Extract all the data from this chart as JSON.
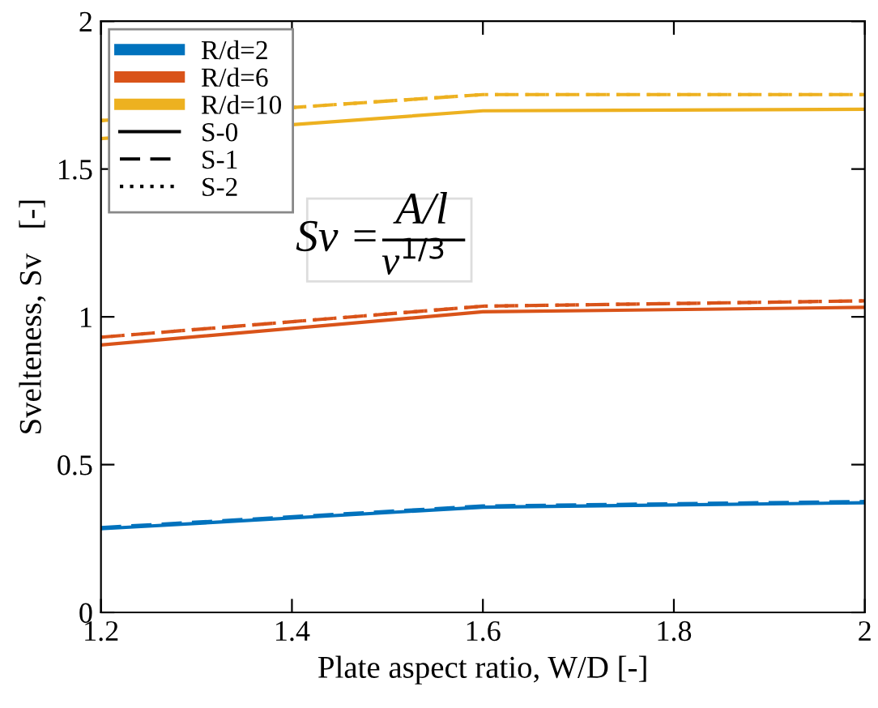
{
  "chart_data": {
    "type": "line",
    "xlabel": "Plate aspect ratio, W/D [-]",
    "ylabel": "Svelteness, Sv   [-]",
    "x": [
      1.2,
      1.6,
      2.0
    ],
    "series": [
      {
        "name": "R/d=2",
        "color": "#0072bd",
        "line_style": "solid",
        "values": [
          0.283,
          0.356,
          0.371
        ]
      },
      {
        "color": "#0072bd",
        "line_style": "dashed",
        "values": [
          0.287,
          0.36,
          0.375
        ]
      },
      {
        "name": "R/d=6",
        "color": "#d95319",
        "line_style": "solid",
        "values": [
          0.905,
          1.017,
          1.032
        ]
      },
      {
        "color": "#d95319",
        "line_style": "dashed",
        "values": [
          0.931,
          1.036,
          1.054
        ]
      },
      {
        "color": "#d95319",
        "line_style": "dotted",
        "values": [
          0.931,
          1.036,
          1.054
        ]
      },
      {
        "name": "R/d=10",
        "color": "#edb120",
        "line_style": "solid",
        "values": [
          1.603,
          1.697,
          1.702
        ]
      },
      {
        "color": "#edb120",
        "line_style": "dashed",
        "values": [
          1.664,
          1.752,
          1.752
        ]
      },
      {
        "color": "#edb120",
        "line_style": "dotted",
        "values": [
          1.664,
          1.752,
          1.752
        ]
      },
      {
        "name": "S-0",
        "color": "#000000",
        "line_style": "solid",
        "values": [
          null,
          null,
          null
        ]
      },
      {
        "name": "S-1",
        "color": "#000000",
        "line_style": "dashed",
        "values": [
          null,
          null,
          null
        ]
      },
      {
        "name": "S-2",
        "color": "#000000",
        "line_style": "dotted",
        "values": [
          null,
          null,
          null
        ]
      }
    ],
    "legend": "top left",
    "annotations": [
      "Sv =",
      "A/l",
      "v$^{1/3}$"
    ],
    "xlim": [
      1.2,
      2.0
    ],
    "xticks": [
      1.2,
      1.4,
      1.6,
      1.8,
      2
    ],
    "ylim": [
      0,
      2
    ],
    "yticks": [
      0,
      0.5,
      1,
      1.5,
      2
    ],
    "grid": false
  }
}
